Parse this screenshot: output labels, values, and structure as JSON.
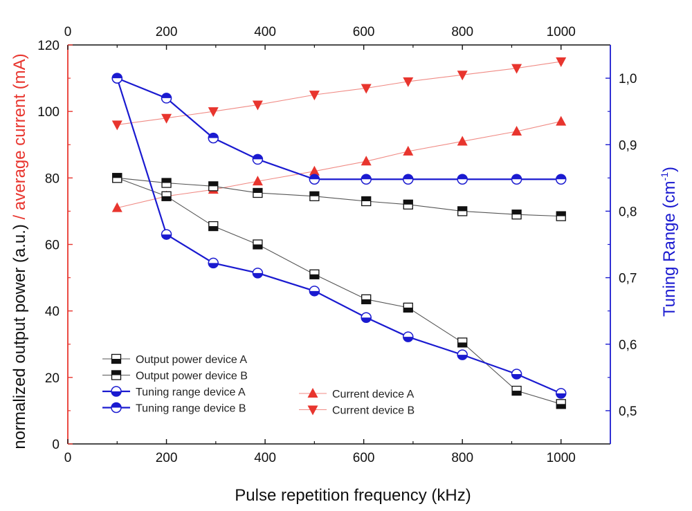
{
  "chart_data": {
    "type": "line",
    "xlabel": "Pulse repetition frequency (kHz)",
    "ylabel_left_part1": "normalized output power (a.u.)",
    "ylabel_left_part2": " / average current (mA)",
    "ylabel_right": "Tuning Range (cm",
    "ylabel_right_sup": "-1",
    "ylabel_right_close": ")",
    "xlim": [
      0,
      1100
    ],
    "xticks": [
      0,
      200,
      400,
      600,
      800,
      1000
    ],
    "xtick_labels": [
      "0",
      "200",
      "400",
      "600",
      "800",
      "1000"
    ],
    "top_xticks": [
      0,
      200,
      400,
      600,
      800,
      1000
    ],
    "top_xtick_labels": [
      "0",
      "200",
      "400",
      "600",
      "800",
      "1000"
    ],
    "ylim_left": [
      0,
      120
    ],
    "yticks_left": [
      0,
      20,
      40,
      60,
      80,
      100,
      120
    ],
    "ytick_labels_left": [
      "0",
      "20",
      "40",
      "60",
      "80",
      "100",
      "120"
    ],
    "ylim_right": [
      0.45,
      1.05
    ],
    "yticks_right": [
      0.5,
      0.6,
      0.7,
      0.8,
      0.9,
      1.0
    ],
    "ytick_labels_right": [
      "0,5",
      "0,6",
      "0,7",
      "0,8",
      "0,9",
      "1,0"
    ],
    "colors": {
      "black": "#111111",
      "gray": "#555555",
      "red": "#e8352e",
      "redline": "#f08a84",
      "blue": "#1a1ad0"
    },
    "series": [
      {
        "name": "Output power device A",
        "axis": "left",
        "marker": "square-bottom",
        "color": "black",
        "x": [
          100,
          200,
          295,
          385,
          500,
          605,
          690,
          800,
          910,
          1000
        ],
        "y": [
          80,
          74.5,
          65.5,
          60,
          51,
          43.5,
          41,
          30.5,
          16,
          12
        ]
      },
      {
        "name": "Output power device B",
        "axis": "left",
        "marker": "square-top",
        "color": "black",
        "x": [
          100,
          200,
          295,
          385,
          500,
          605,
          690,
          800,
          910,
          1000
        ],
        "y": [
          80,
          78.5,
          77.5,
          75.5,
          74.5,
          73,
          72,
          70,
          69,
          68.5
        ]
      },
      {
        "name": "Tuning range device A",
        "axis": "right",
        "marker": "circle-bottom",
        "color": "blue",
        "x": [
          100,
          200,
          295,
          385,
          500,
          605,
          690,
          800,
          910,
          1000
        ],
        "y": [
          1.0,
          0.765,
          0.722,
          0.707,
          0.68,
          0.64,
          0.611,
          0.584,
          0.555,
          0.526
        ]
      },
      {
        "name": "Tuning range device B",
        "axis": "right",
        "marker": "circle-top",
        "color": "blue",
        "x": [
          100,
          200,
          295,
          385,
          500,
          605,
          690,
          800,
          910,
          1000
        ],
        "y": [
          1.0,
          0.97,
          0.91,
          0.878,
          0.848,
          0.848,
          0.848,
          0.848,
          0.848,
          0.848
        ]
      },
      {
        "name": "Current device A",
        "axis": "left",
        "marker": "triangle-up",
        "color": "red",
        "x": [
          100,
          200,
          295,
          385,
          500,
          605,
          690,
          800,
          910,
          1000
        ],
        "y": [
          71,
          74.5,
          76.5,
          79,
          82,
          85,
          88,
          91,
          94,
          97
        ]
      },
      {
        "name": "Current device B",
        "axis": "left",
        "marker": "triangle-down",
        "color": "red",
        "x": [
          100,
          200,
          295,
          385,
          500,
          605,
          690,
          800,
          910,
          1000
        ],
        "y": [
          96,
          98,
          100,
          102,
          105,
          107,
          109,
          111,
          113,
          115
        ]
      }
    ],
    "legend": {
      "col1": [
        "Output power device A",
        "Output power device B",
        "Tuning range device A",
        "Tuning range device B"
      ],
      "col2": [
        "Current device A",
        "Current device B"
      ]
    }
  }
}
